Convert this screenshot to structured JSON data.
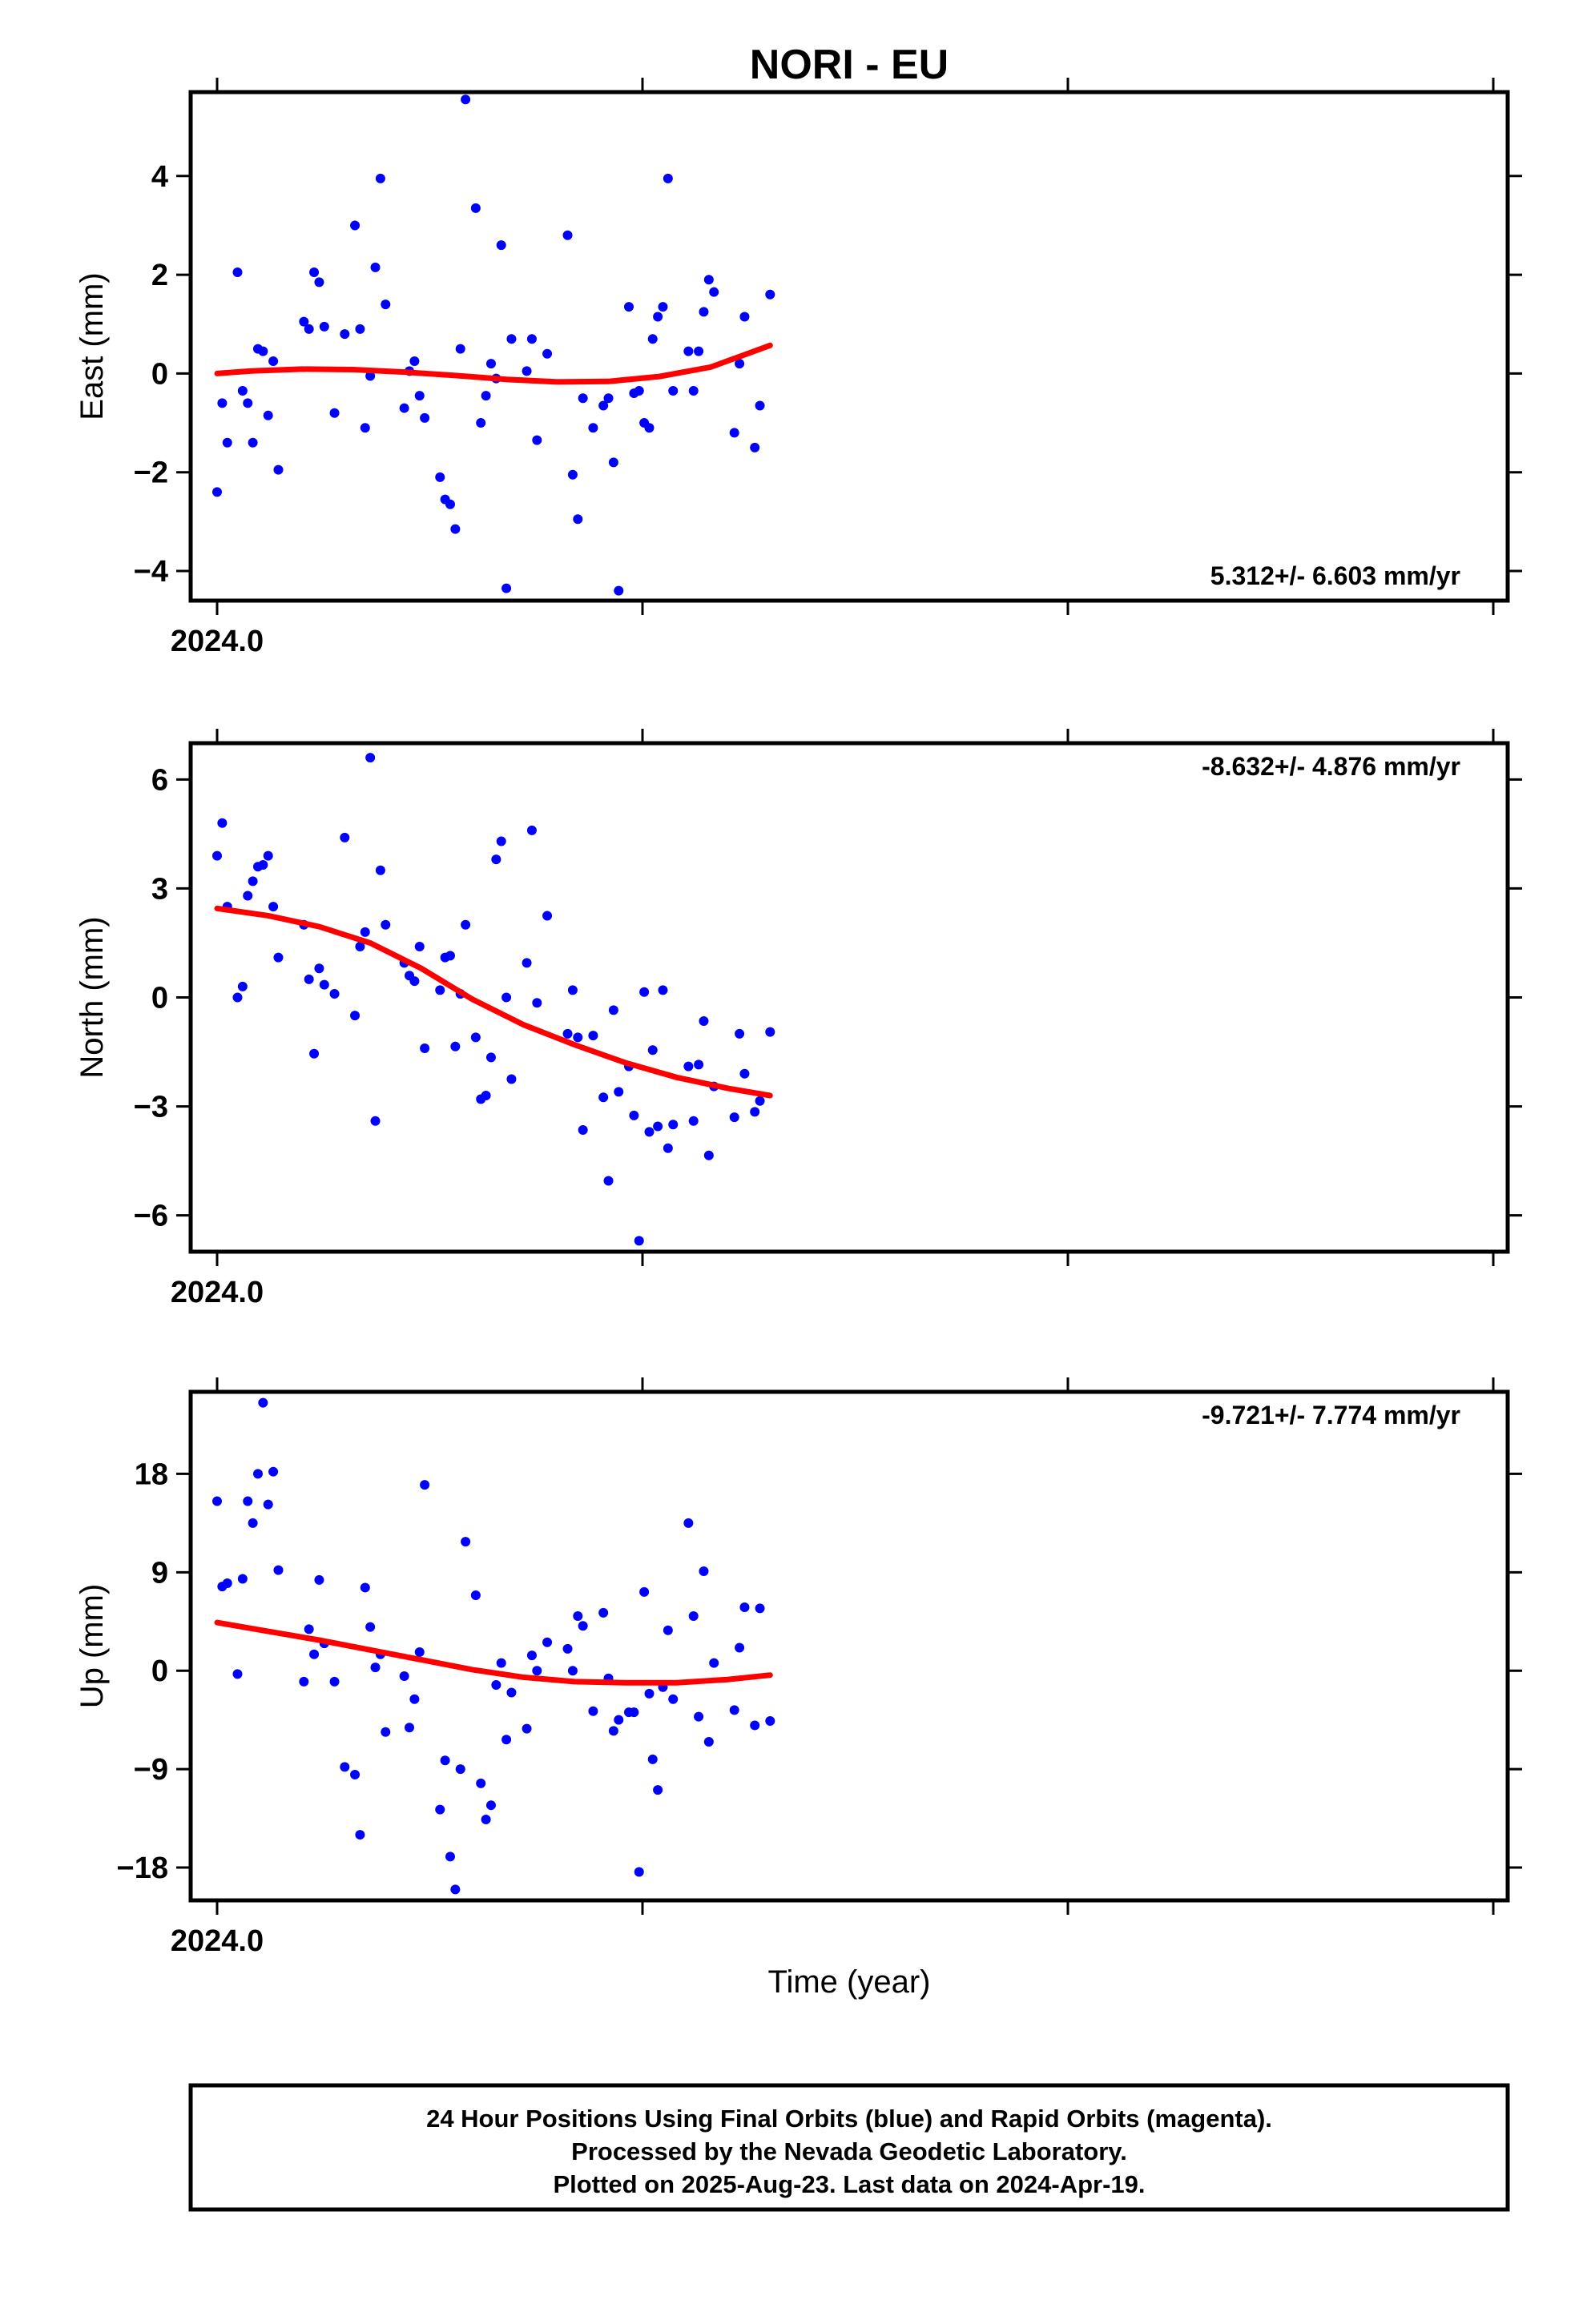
{
  "chart_data": [
    {
      "type": "scatter",
      "title": "NORI - EU",
      "ylabel": "East (mm)",
      "xlabel": "",
      "x_tick_label": "2024.0",
      "ylim": [
        -4.6,
        5.7
      ],
      "xlim": [
        2023.985,
        2024.305
      ],
      "y_ticks": [
        -4,
        -2,
        0,
        2,
        4
      ],
      "y_tick_labels": [
        "−4",
        "−2",
        "0",
        "2",
        "4"
      ],
      "rate_text": "5.312+/- 6.603 mm/yr",
      "rate_position": "bottom-right",
      "points_color": "#0000ff",
      "fit_color": "#ff0000",
      "points": [
        [
          0.0,
          -2.4
        ],
        [
          0.003,
          -0.6
        ],
        [
          0.006,
          -1.4
        ],
        [
          0.012,
          2.05
        ],
        [
          0.015,
          -0.35
        ],
        [
          0.018,
          -0.6
        ],
        [
          0.021,
          -1.4
        ],
        [
          0.024,
          0.5
        ],
        [
          0.027,
          0.45
        ],
        [
          0.03,
          -0.85
        ],
        [
          0.033,
          0.25
        ],
        [
          0.036,
          -1.95
        ],
        [
          0.051,
          1.05
        ],
        [
          0.054,
          0.9
        ],
        [
          0.057,
          2.05
        ],
        [
          0.06,
          1.85
        ],
        [
          0.063,
          0.95
        ],
        [
          0.069,
          -0.8
        ],
        [
          0.075,
          0.8
        ],
        [
          0.081,
          3.0
        ],
        [
          0.084,
          0.9
        ],
        [
          0.087,
          -1.1
        ],
        [
          0.09,
          -0.05
        ],
        [
          0.093,
          2.15
        ],
        [
          0.096,
          3.95
        ],
        [
          0.099,
          1.4
        ],
        [
          0.11,
          -0.7
        ],
        [
          0.113,
          0.05
        ],
        [
          0.116,
          0.25
        ],
        [
          0.119,
          -0.45
        ],
        [
          0.122,
          -0.9
        ],
        [
          0.131,
          -2.1
        ],
        [
          0.134,
          -2.55
        ],
        [
          0.137,
          -2.65
        ],
        [
          0.14,
          -3.15
        ],
        [
          0.143,
          0.5
        ],
        [
          0.146,
          5.55
        ],
        [
          0.152,
          3.35
        ],
        [
          0.155,
          -1.0
        ],
        [
          0.158,
          -0.45
        ],
        [
          0.161,
          0.2
        ],
        [
          0.164,
          -0.1
        ],
        [
          0.167,
          2.6
        ],
        [
          0.17,
          -4.35
        ],
        [
          0.173,
          0.7
        ],
        [
          0.182,
          0.05
        ],
        [
          0.185,
          0.7
        ],
        [
          0.188,
          -1.35
        ],
        [
          0.194,
          0.4
        ],
        [
          0.206,
          2.8
        ],
        [
          0.209,
          -2.05
        ],
        [
          0.212,
          -2.95
        ],
        [
          0.215,
          -0.5
        ],
        [
          0.221,
          -1.1
        ],
        [
          0.227,
          -0.65
        ],
        [
          0.23,
          -0.5
        ],
        [
          0.233,
          -1.8
        ],
        [
          0.236,
          -4.4
        ],
        [
          0.242,
          1.35
        ],
        [
          0.245,
          -0.4
        ],
        [
          0.248,
          -0.35
        ],
        [
          0.251,
          -1.0
        ],
        [
          0.254,
          -1.1
        ],
        [
          0.256,
          0.7
        ],
        [
          0.259,
          1.15
        ],
        [
          0.262,
          1.35
        ],
        [
          0.265,
          3.95
        ],
        [
          0.268,
          -0.35
        ],
        [
          0.277,
          0.45
        ],
        [
          0.28,
          -0.35
        ],
        [
          0.283,
          0.45
        ],
        [
          0.286,
          1.25
        ],
        [
          0.289,
          1.9
        ],
        [
          0.292,
          1.65
        ],
        [
          0.304,
          -1.2
        ],
        [
          0.307,
          0.2
        ],
        [
          0.31,
          1.15
        ],
        [
          0.316,
          -1.5
        ],
        [
          0.319,
          -0.65
        ],
        [
          0.325,
          1.6
        ]
      ],
      "fit": [
        [
          0.0,
          0.0
        ],
        [
          0.02,
          0.05
        ],
        [
          0.05,
          0.09
        ],
        [
          0.08,
          0.08
        ],
        [
          0.11,
          0.03
        ],
        [
          0.14,
          -0.04
        ],
        [
          0.17,
          -0.12
        ],
        [
          0.2,
          -0.17
        ],
        [
          0.23,
          -0.16
        ],
        [
          0.26,
          -0.06
        ],
        [
          0.29,
          0.13
        ],
        [
          0.325,
          0.57
        ]
      ]
    },
    {
      "type": "scatter",
      "title": "",
      "ylabel": "North (mm)",
      "xlabel": "",
      "x_tick_label": "2024.0",
      "ylim": [
        -7.0,
        7.0
      ],
      "xlim": [
        2023.985,
        2024.305
      ],
      "y_ticks": [
        -6,
        -3,
        0,
        3,
        6
      ],
      "y_tick_labels": [
        "−6",
        "−3",
        "0",
        "3",
        "6"
      ],
      "rate_text": "-8.632+/- 4.876 mm/yr",
      "rate_position": "top-right",
      "points_color": "#0000ff",
      "fit_color": "#ff0000",
      "points": [
        [
          0.0,
          3.9
        ],
        [
          0.003,
          4.8
        ],
        [
          0.006,
          2.5
        ],
        [
          0.012,
          0.0
        ],
        [
          0.015,
          0.3
        ],
        [
          0.018,
          2.8
        ],
        [
          0.021,
          3.2
        ],
        [
          0.024,
          3.6
        ],
        [
          0.027,
          3.65
        ],
        [
          0.03,
          3.9
        ],
        [
          0.033,
          2.5
        ],
        [
          0.036,
          1.1
        ],
        [
          0.051,
          2.0
        ],
        [
          0.054,
          0.5
        ],
        [
          0.057,
          -1.55
        ],
        [
          0.06,
          0.8
        ],
        [
          0.063,
          0.35
        ],
        [
          0.069,
          0.1
        ],
        [
          0.075,
          4.4
        ],
        [
          0.081,
          -0.5
        ],
        [
          0.084,
          1.4
        ],
        [
          0.087,
          1.8
        ],
        [
          0.09,
          6.6
        ],
        [
          0.093,
          -3.4
        ],
        [
          0.096,
          3.5
        ],
        [
          0.099,
          2.0
        ],
        [
          0.11,
          0.95
        ],
        [
          0.113,
          0.6
        ],
        [
          0.116,
          0.45
        ],
        [
          0.119,
          1.4
        ],
        [
          0.122,
          -1.4
        ],
        [
          0.131,
          0.2
        ],
        [
          0.134,
          1.1
        ],
        [
          0.137,
          1.15
        ],
        [
          0.14,
          -1.35
        ],
        [
          0.143,
          0.1
        ],
        [
          0.146,
          2.0
        ],
        [
          0.152,
          -1.1
        ],
        [
          0.155,
          -2.8
        ],
        [
          0.158,
          -2.7
        ],
        [
          0.161,
          -1.65
        ],
        [
          0.164,
          3.8
        ],
        [
          0.167,
          4.3
        ],
        [
          0.17,
          0.0
        ],
        [
          0.173,
          -2.25
        ],
        [
          0.182,
          0.95
        ],
        [
          0.185,
          4.6
        ],
        [
          0.188,
          -0.15
        ],
        [
          0.194,
          2.25
        ],
        [
          0.206,
          -1.0
        ],
        [
          0.209,
          0.2
        ],
        [
          0.212,
          -1.1
        ],
        [
          0.215,
          -3.65
        ],
        [
          0.221,
          -1.05
        ],
        [
          0.227,
          -2.75
        ],
        [
          0.23,
          -5.05
        ],
        [
          0.233,
          -0.35
        ],
        [
          0.236,
          -2.6
        ],
        [
          0.242,
          -1.9
        ],
        [
          0.245,
          -3.25
        ],
        [
          0.248,
          -6.7
        ],
        [
          0.251,
          0.15
        ],
        [
          0.254,
          -3.7
        ],
        [
          0.256,
          -1.45
        ],
        [
          0.259,
          -3.55
        ],
        [
          0.262,
          0.2
        ],
        [
          0.265,
          -4.15
        ],
        [
          0.268,
          -3.5
        ],
        [
          0.277,
          -1.9
        ],
        [
          0.28,
          -3.4
        ],
        [
          0.283,
          -1.85
        ],
        [
          0.286,
          -0.65
        ],
        [
          0.289,
          -4.35
        ],
        [
          0.292,
          -2.45
        ],
        [
          0.304,
          -3.3
        ],
        [
          0.307,
          -1.0
        ],
        [
          0.31,
          -2.1
        ],
        [
          0.316,
          -3.15
        ],
        [
          0.319,
          -2.85
        ],
        [
          0.325,
          -0.95
        ]
      ],
      "fit": [
        [
          0.0,
          2.45
        ],
        [
          0.03,
          2.25
        ],
        [
          0.06,
          1.95
        ],
        [
          0.09,
          1.5
        ],
        [
          0.12,
          0.8
        ],
        [
          0.15,
          -0.05
        ],
        [
          0.18,
          -0.75
        ],
        [
          0.21,
          -1.3
        ],
        [
          0.24,
          -1.8
        ],
        [
          0.27,
          -2.2
        ],
        [
          0.3,
          -2.5
        ],
        [
          0.325,
          -2.7
        ]
      ]
    },
    {
      "type": "scatter",
      "title": "",
      "ylabel": "Up (mm)",
      "xlabel": "Time (year)",
      "x_tick_label": "2024.0",
      "ylim": [
        -21.0,
        25.5
      ],
      "xlim": [
        2023.985,
        2024.305
      ],
      "y_ticks": [
        -18,
        -9,
        0,
        9,
        18
      ],
      "y_tick_labels": [
        "−18",
        "−9",
        "0",
        "9",
        "18"
      ],
      "rate_text": "-9.721+/- 7.774 mm/yr",
      "rate_position": "top-right",
      "points_color": "#0000ff",
      "fit_color": "#ff0000",
      "points": [
        [
          0.0,
          15.5
        ],
        [
          0.003,
          7.7
        ],
        [
          0.006,
          8.0
        ],
        [
          0.012,
          -0.3
        ],
        [
          0.015,
          8.4
        ],
        [
          0.018,
          15.5
        ],
        [
          0.021,
          13.5
        ],
        [
          0.024,
          18.0
        ],
        [
          0.027,
          24.5
        ],
        [
          0.03,
          15.2
        ],
        [
          0.033,
          18.2
        ],
        [
          0.036,
          9.2
        ],
        [
          0.051,
          -1.0
        ],
        [
          0.054,
          3.8
        ],
        [
          0.057,
          1.5
        ],
        [
          0.06,
          8.3
        ],
        [
          0.063,
          2.5
        ],
        [
          0.069,
          -1.0
        ],
        [
          0.075,
          -8.8
        ],
        [
          0.081,
          -9.5
        ],
        [
          0.084,
          -15.0
        ],
        [
          0.087,
          7.6
        ],
        [
          0.09,
          4.0
        ],
        [
          0.093,
          0.3
        ],
        [
          0.096,
          1.5
        ],
        [
          0.099,
          -5.6
        ],
        [
          0.11,
          -0.5
        ],
        [
          0.113,
          -5.2
        ],
        [
          0.116,
          -2.6
        ],
        [
          0.119,
          1.7
        ],
        [
          0.122,
          17.0
        ],
        [
          0.131,
          -12.7
        ],
        [
          0.134,
          -8.2
        ],
        [
          0.137,
          -17.0
        ],
        [
          0.14,
          -20.0
        ],
        [
          0.143,
          -9.0
        ],
        [
          0.146,
          11.8
        ],
        [
          0.152,
          6.9
        ],
        [
          0.155,
          -10.3
        ],
        [
          0.158,
          -13.6
        ],
        [
          0.161,
          -12.3
        ],
        [
          0.164,
          -1.3
        ],
        [
          0.167,
          0.7
        ],
        [
          0.17,
          -6.3
        ],
        [
          0.173,
          -2.0
        ],
        [
          0.182,
          -5.3
        ],
        [
          0.185,
          1.4
        ],
        [
          0.188,
          0.0
        ],
        [
          0.194,
          2.6
        ],
        [
          0.206,
          2.0
        ],
        [
          0.209,
          0.0
        ],
        [
          0.212,
          5.0
        ],
        [
          0.215,
          4.1
        ],
        [
          0.221,
          -3.7
        ],
        [
          0.227,
          5.3
        ],
        [
          0.23,
          -0.7
        ],
        [
          0.233,
          -5.5
        ],
        [
          0.236,
          -4.5
        ],
        [
          0.242,
          -3.8
        ],
        [
          0.245,
          -3.8
        ],
        [
          0.248,
          -18.4
        ],
        [
          0.251,
          7.2
        ],
        [
          0.254,
          -2.1
        ],
        [
          0.256,
          -8.1
        ],
        [
          0.259,
          -10.9
        ],
        [
          0.262,
          -1.5
        ],
        [
          0.265,
          3.7
        ],
        [
          0.268,
          -2.6
        ],
        [
          0.277,
          13.5
        ],
        [
          0.28,
          5.0
        ],
        [
          0.283,
          -4.2
        ],
        [
          0.286,
          9.1
        ],
        [
          0.289,
          -6.5
        ],
        [
          0.292,
          0.7
        ],
        [
          0.304,
          -3.6
        ],
        [
          0.307,
          2.1
        ],
        [
          0.31,
          5.8
        ],
        [
          0.316,
          -5.0
        ],
        [
          0.319,
          5.7
        ],
        [
          0.325,
          -4.6
        ]
      ],
      "fit": [
        [
          0.0,
          4.4
        ],
        [
          0.03,
          3.6
        ],
        [
          0.06,
          2.8
        ],
        [
          0.09,
          1.9
        ],
        [
          0.12,
          1.0
        ],
        [
          0.15,
          0.1
        ],
        [
          0.18,
          -0.6
        ],
        [
          0.21,
          -1.0
        ],
        [
          0.24,
          -1.1
        ],
        [
          0.27,
          -1.1
        ],
        [
          0.3,
          -0.8
        ],
        [
          0.325,
          -0.4
        ]
      ]
    }
  ],
  "footer": {
    "line1": "24 Hour Positions Using Final Orbits (blue) and Rapid Orbits (magenta).",
    "line2": "Processed by the Nevada Geodetic Laboratory.",
    "line3": "Plotted on 2025-Aug-23. Last data on 2024-Apr-19."
  }
}
